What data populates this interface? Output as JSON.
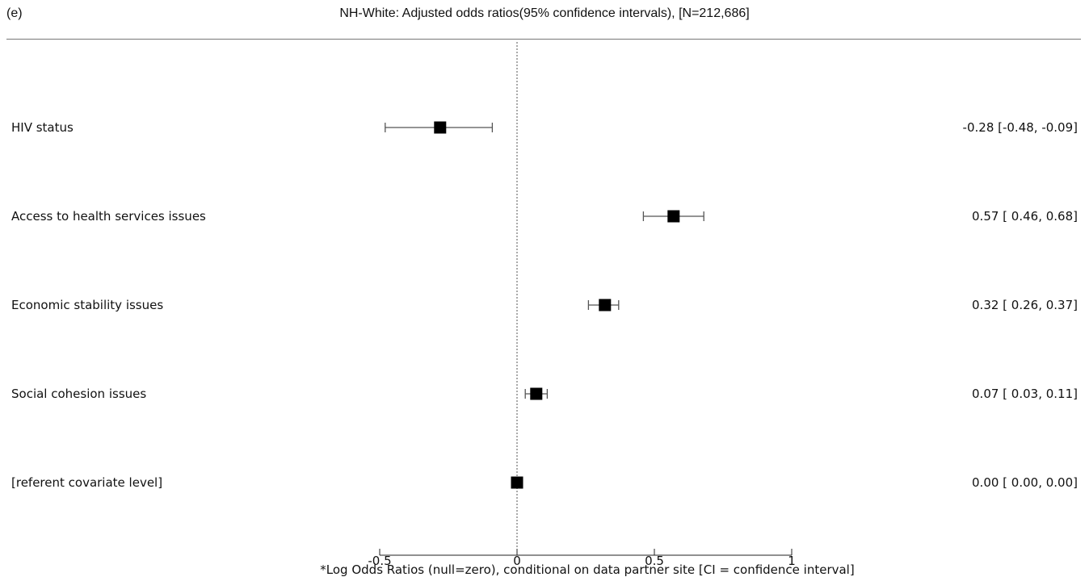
{
  "header": {
    "panel_label": "(e)",
    "title": "NH-White: Adjusted odds ratios(95% confidence intervals), [N=212,686]"
  },
  "chart_data": {
    "type": "forest",
    "xlabel": "*Log Odds Ratios (null=zero), conditional on data partner site [CI = confidence interval]",
    "xlim": [
      -0.5,
      1
    ],
    "xticks": [
      -0.5,
      0,
      0.5,
      1
    ],
    "xtick_labels": [
      "-0.5",
      "0",
      "0.5",
      "1"
    ],
    "null_line": 0,
    "rows": [
      {
        "label": "HIV status",
        "estimate": -0.28,
        "lower": -0.48,
        "upper": -0.09,
        "text": "-0.28 [-0.48, -0.09]"
      },
      {
        "label": "Access to health services issues",
        "estimate": 0.57,
        "lower": 0.46,
        "upper": 0.68,
        "text": "0.57 [ 0.46, 0.68]"
      },
      {
        "label": "Economic stability issues",
        "estimate": 0.32,
        "lower": 0.26,
        "upper": 0.37,
        "text": "0.32 [ 0.26, 0.37]"
      },
      {
        "label": "Social cohesion issues",
        "estimate": 0.07,
        "lower": 0.03,
        "upper": 0.11,
        "text": "0.07 [ 0.03, 0.11]"
      },
      {
        "label": "[referent covariate level]",
        "estimate": 0.0,
        "lower": 0.0,
        "upper": 0.0,
        "text": "0.00 [ 0.00, 0.00]"
      }
    ]
  }
}
